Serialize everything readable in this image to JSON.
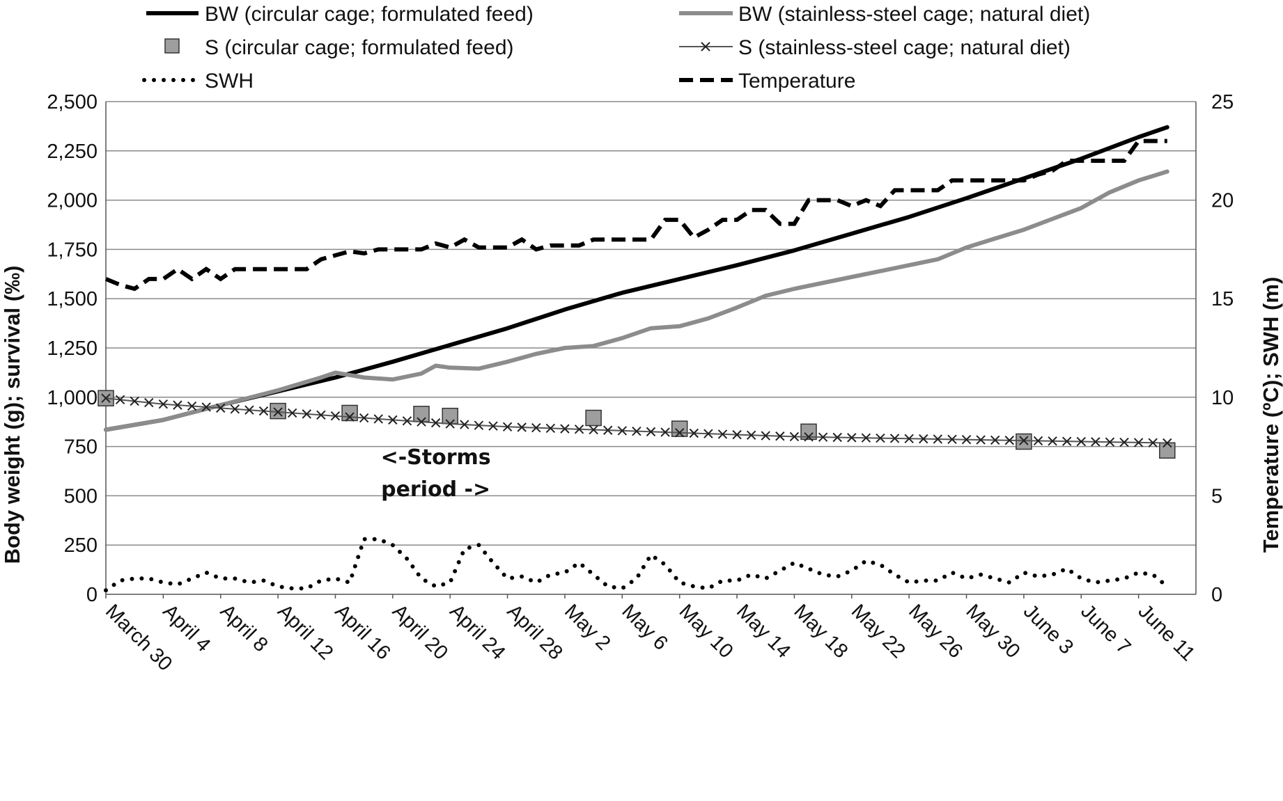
{
  "chart_data": {
    "type": "line",
    "x_tick_labels": [
      "March 30",
      "April 4",
      "April 8",
      "April 12",
      "April 16",
      "April 20",
      "April 24",
      "April 28",
      "May 2",
      "May 6",
      "May 10",
      "May 14",
      "May 18",
      "May 22",
      "May 26",
      "May 30",
      "June 3",
      "June 7",
      "June 11"
    ],
    "x_tick_days": [
      0,
      4,
      8,
      12,
      16,
      20,
      24,
      28,
      32,
      36,
      40,
      44,
      48,
      52,
      56,
      60,
      64,
      68,
      72
    ],
    "x_range_days": [
      0,
      76
    ],
    "x_start_label": "March 30",
    "ylabel_left": "Body weight (g); survival (‰)",
    "ylabel_right": "Temperature (ºC); SWH (m)",
    "ylim_left": [
      0,
      2500
    ],
    "ylim_right": [
      0,
      25
    ],
    "y_ticks_left": [
      "0",
      "250",
      "500",
      "750",
      "1,000",
      "1,250",
      "1,500",
      "1,750",
      "2,000",
      "2,250",
      "2,500"
    ],
    "y_ticks_right": [
      "0",
      "5",
      "10",
      "15",
      "20",
      "25"
    ],
    "grid": "horizontal",
    "legend_position": "top",
    "annotation": {
      "line1": "<-Storms",
      "line2": "period ->",
      "x_day": 23,
      "y_value": 660
    },
    "series": [
      {
        "name": "BW (circular cage;  formulated feed)",
        "axis": "left",
        "style": "solid",
        "color": "#000000",
        "x": [
          0,
          4,
          8,
          12,
          16,
          20,
          24,
          28,
          32,
          36,
          40,
          44,
          48,
          52,
          56,
          60,
          64,
          68,
          72,
          74
        ],
        "y": [
          835,
          885,
          960,
          1030,
          1100,
          1180,
          1265,
          1350,
          1445,
          1530,
          1600,
          1670,
          1745,
          1830,
          1915,
          2010,
          2110,
          2210,
          2320,
          2370
        ]
      },
      {
        "name": "BW (stainless-steel cage; natural diet)",
        "axis": "left",
        "style": "solid",
        "color": "#8c8c8c",
        "x": [
          0,
          4,
          8,
          12,
          15,
          16,
          18,
          20,
          22,
          23,
          24,
          26,
          28,
          30,
          32,
          34,
          36,
          38,
          40,
          42,
          44,
          46,
          48,
          50,
          52,
          54,
          56,
          58,
          60,
          62,
          64,
          66,
          68,
          70,
          72,
          74
        ],
        "y": [
          835,
          885,
          960,
          1035,
          1100,
          1125,
          1100,
          1090,
          1120,
          1160,
          1150,
          1145,
          1180,
          1220,
          1250,
          1260,
          1300,
          1350,
          1360,
          1400,
          1455,
          1515,
          1550,
          1580,
          1610,
          1640,
          1670,
          1700,
          1760,
          1805,
          1850,
          1905,
          1960,
          2040,
          2100,
          2145
        ]
      },
      {
        "name": "S (circular cage; formulated feed)",
        "axis": "left",
        "style": "markers",
        "marker": "square",
        "color": "#9e9e9e",
        "x": [
          0,
          12,
          17,
          22,
          24,
          34,
          40,
          49,
          64,
          74
        ],
        "y": [
          995,
          930,
          920,
          915,
          905,
          895,
          840,
          825,
          775,
          730
        ]
      },
      {
        "name": "S (stainless-steel cage; natural diet)",
        "axis": "left",
        "style": "line-x",
        "color": "#555555",
        "x": [
          0,
          4,
          8,
          12,
          16,
          20,
          24,
          28,
          32,
          36,
          40,
          44,
          48,
          52,
          56,
          60,
          64,
          68,
          72,
          74
        ],
        "y": [
          995,
          965,
          945,
          925,
          905,
          885,
          865,
          850,
          840,
          830,
          820,
          810,
          800,
          795,
          790,
          785,
          780,
          775,
          770,
          768
        ]
      },
      {
        "name": "SWH",
        "axis": "right",
        "style": "dotted",
        "color": "#000000",
        "x": [
          0,
          1,
          2,
          3,
          4,
          5,
          6,
          7,
          8,
          9,
          10,
          11,
          12,
          13,
          14,
          15,
          16,
          17,
          18,
          19,
          20,
          21,
          22,
          23,
          24,
          25,
          26,
          27,
          28,
          29,
          30,
          31,
          32,
          33,
          34,
          35,
          36,
          37,
          38,
          39,
          40,
          41,
          42,
          43,
          44,
          45,
          46,
          47,
          48,
          49,
          50,
          51,
          52,
          53,
          54,
          55,
          56,
          57,
          58,
          59,
          60,
          61,
          62,
          63,
          64,
          65,
          66,
          67,
          68,
          69,
          70,
          71,
          72,
          73,
          74
        ],
        "y": [
          0.2,
          0.7,
          0.8,
          0.8,
          0.6,
          0.5,
          0.8,
          1.1,
          0.8,
          0.8,
          0.6,
          0.7,
          0.4,
          0.3,
          0.3,
          0.7,
          0.8,
          0.6,
          2.8,
          2.8,
          2.5,
          1.8,
          0.8,
          0.4,
          0.6,
          2.3,
          2.5,
          1.6,
          0.8,
          0.9,
          0.6,
          1.0,
          1.1,
          1.6,
          1.0,
          0.4,
          0.3,
          0.8,
          2.0,
          1.5,
          0.6,
          0.4,
          0.3,
          0.7,
          0.7,
          1.0,
          0.8,
          1.2,
          1.6,
          1.3,
          1.0,
          0.9,
          1.2,
          1.7,
          1.5,
          1.0,
          0.6,
          0.7,
          0.7,
          1.1,
          0.8,
          1.0,
          0.8,
          0.6,
          1.1,
          0.9,
          1.0,
          1.3,
          0.8,
          0.6,
          0.7,
          0.8,
          1.1,
          1.0,
          0.4
        ]
      },
      {
        "name": "Temperature",
        "axis": "right",
        "style": "dashed",
        "color": "#000000",
        "x": [
          0,
          1,
          2,
          3,
          4,
          5,
          6,
          7,
          8,
          9,
          10,
          11,
          12,
          13,
          14,
          15,
          16,
          17,
          18,
          19,
          20,
          21,
          22,
          23,
          24,
          25,
          26,
          27,
          28,
          29,
          30,
          31,
          32,
          33,
          34,
          35,
          36,
          37,
          38,
          39,
          40,
          41,
          42,
          43,
          44,
          45,
          46,
          47,
          48,
          49,
          50,
          51,
          52,
          53,
          54,
          55,
          56,
          57,
          58,
          59,
          60,
          61,
          62,
          63,
          64,
          65,
          66,
          67,
          68,
          69,
          70,
          71,
          72,
          73,
          74
        ],
        "y": [
          16,
          15.7,
          15.5,
          16,
          16,
          16.5,
          16,
          16.5,
          16,
          16.5,
          16.5,
          16.5,
          16.5,
          16.5,
          16.5,
          17,
          17.2,
          17.4,
          17.3,
          17.5,
          17.5,
          17.5,
          17.5,
          17.8,
          17.6,
          18,
          17.6,
          17.6,
          17.6,
          18,
          17.5,
          17.7,
          17.7,
          17.7,
          18,
          18,
          18,
          18,
          18,
          19,
          19,
          18.1,
          18.5,
          19,
          19,
          19.5,
          19.5,
          18.8,
          18.8,
          20,
          20,
          20,
          19.7,
          20,
          19.7,
          20.5,
          20.5,
          20.5,
          20.5,
          21,
          21,
          21,
          21,
          21,
          21,
          21.3,
          21.5,
          22,
          22,
          22,
          22,
          22,
          23,
          23,
          23
        ]
      }
    ]
  },
  "legend": {
    "items": [
      {
        "label": "BW (circular cage;  formulated feed)",
        "style": "solid-black"
      },
      {
        "label": "BW (stainless-steel cage; natural diet)",
        "style": "solid-gray"
      },
      {
        "label": "S (circular cage; formulated feed)",
        "style": "square-marker"
      },
      {
        "label": "S (stainless-steel cage; natural diet)",
        "style": "x-line"
      },
      {
        "label": "SWH",
        "style": "dotted"
      },
      {
        "label": "Temperature",
        "style": "dashed"
      }
    ]
  }
}
